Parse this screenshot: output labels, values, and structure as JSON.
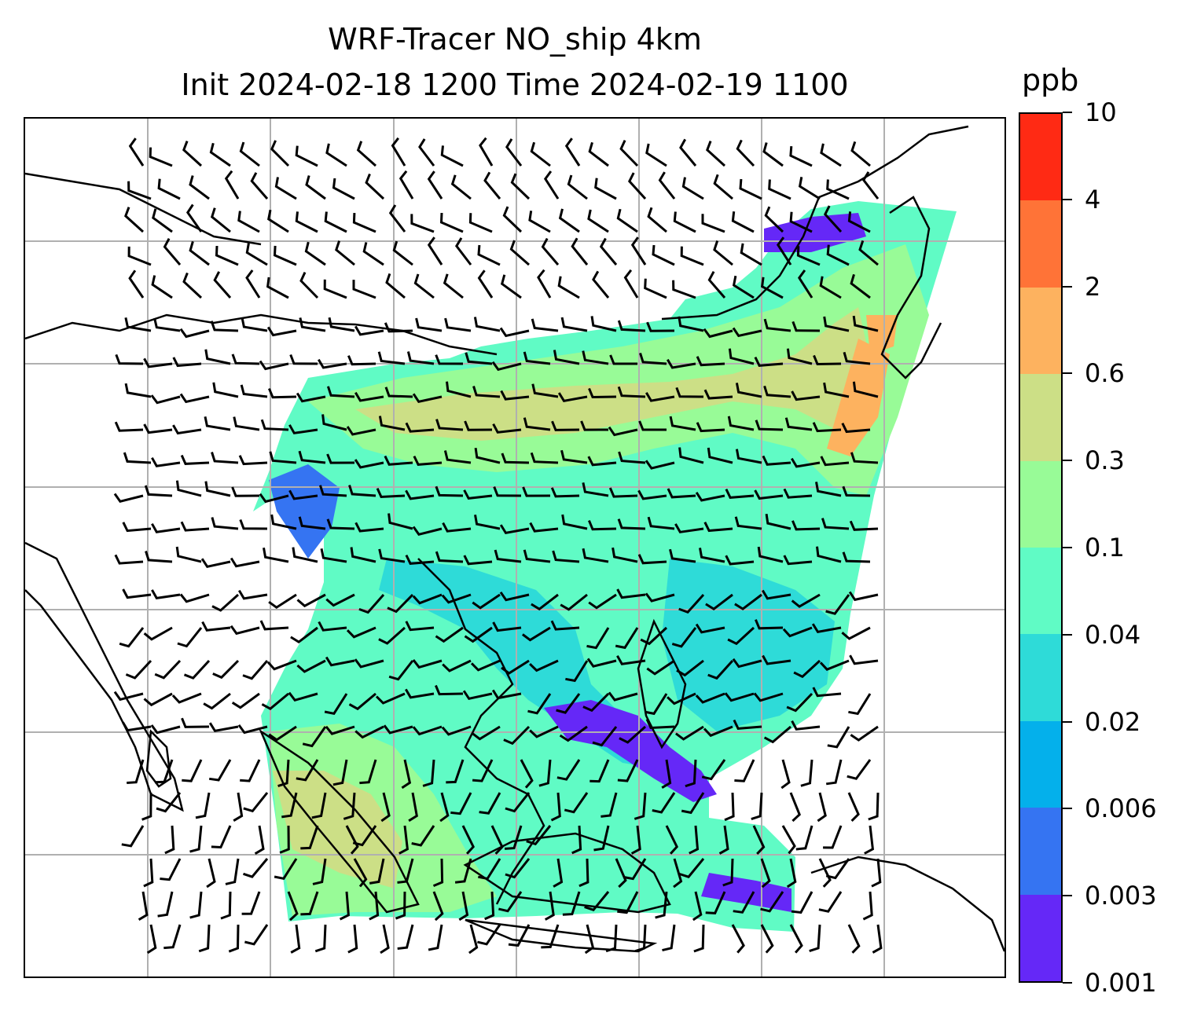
{
  "title": {
    "line1": "WRF-Tracer NO_ship 4km",
    "line2": "Init 2024-02-18 1200 Time 2024-02-19 1100"
  },
  "colorbar": {
    "unit": "ppb",
    "levels": [
      "0.001",
      "0.003",
      "0.006",
      "0.02",
      "0.04",
      "0.1",
      "0.3",
      "0.6",
      "2",
      "4",
      "10"
    ],
    "colors": [
      "#6528f7",
      "#3574f2",
      "#04b0eb",
      "#2edbd8",
      "#60fbc5",
      "#98fb97",
      "#ccdf86",
      "#fdb25f",
      "#ff7337",
      "#ff2a14"
    ]
  },
  "map": {
    "gridlines": true,
    "field": "NO_ship tracer concentration",
    "overlay": "wind barbs",
    "coastline_color": "#000000",
    "gridline_color": "#b0b0b0"
  }
}
